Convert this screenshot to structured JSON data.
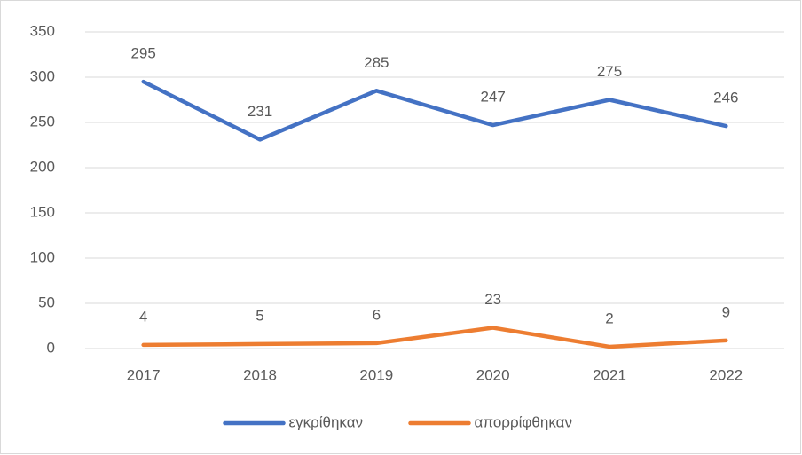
{
  "chart_data": {
    "type": "line",
    "categories": [
      "2017",
      "2018",
      "2019",
      "2020",
      "2021",
      "2022"
    ],
    "series": [
      {
        "name": "εγκρίθηκαν",
        "color": "#4472c4",
        "values": [
          295,
          231,
          285,
          247,
          275,
          246
        ]
      },
      {
        "name": "απορρίφθηκαν",
        "color": "#ed7d31",
        "values": [
          4,
          5,
          6,
          23,
          2,
          9
        ]
      }
    ],
    "ylim": [
      0,
      350
    ],
    "yticks": [
      0,
      50,
      100,
      150,
      200,
      250,
      300,
      350
    ],
    "grid": true,
    "legend": "bottom",
    "data_labels": true
  }
}
